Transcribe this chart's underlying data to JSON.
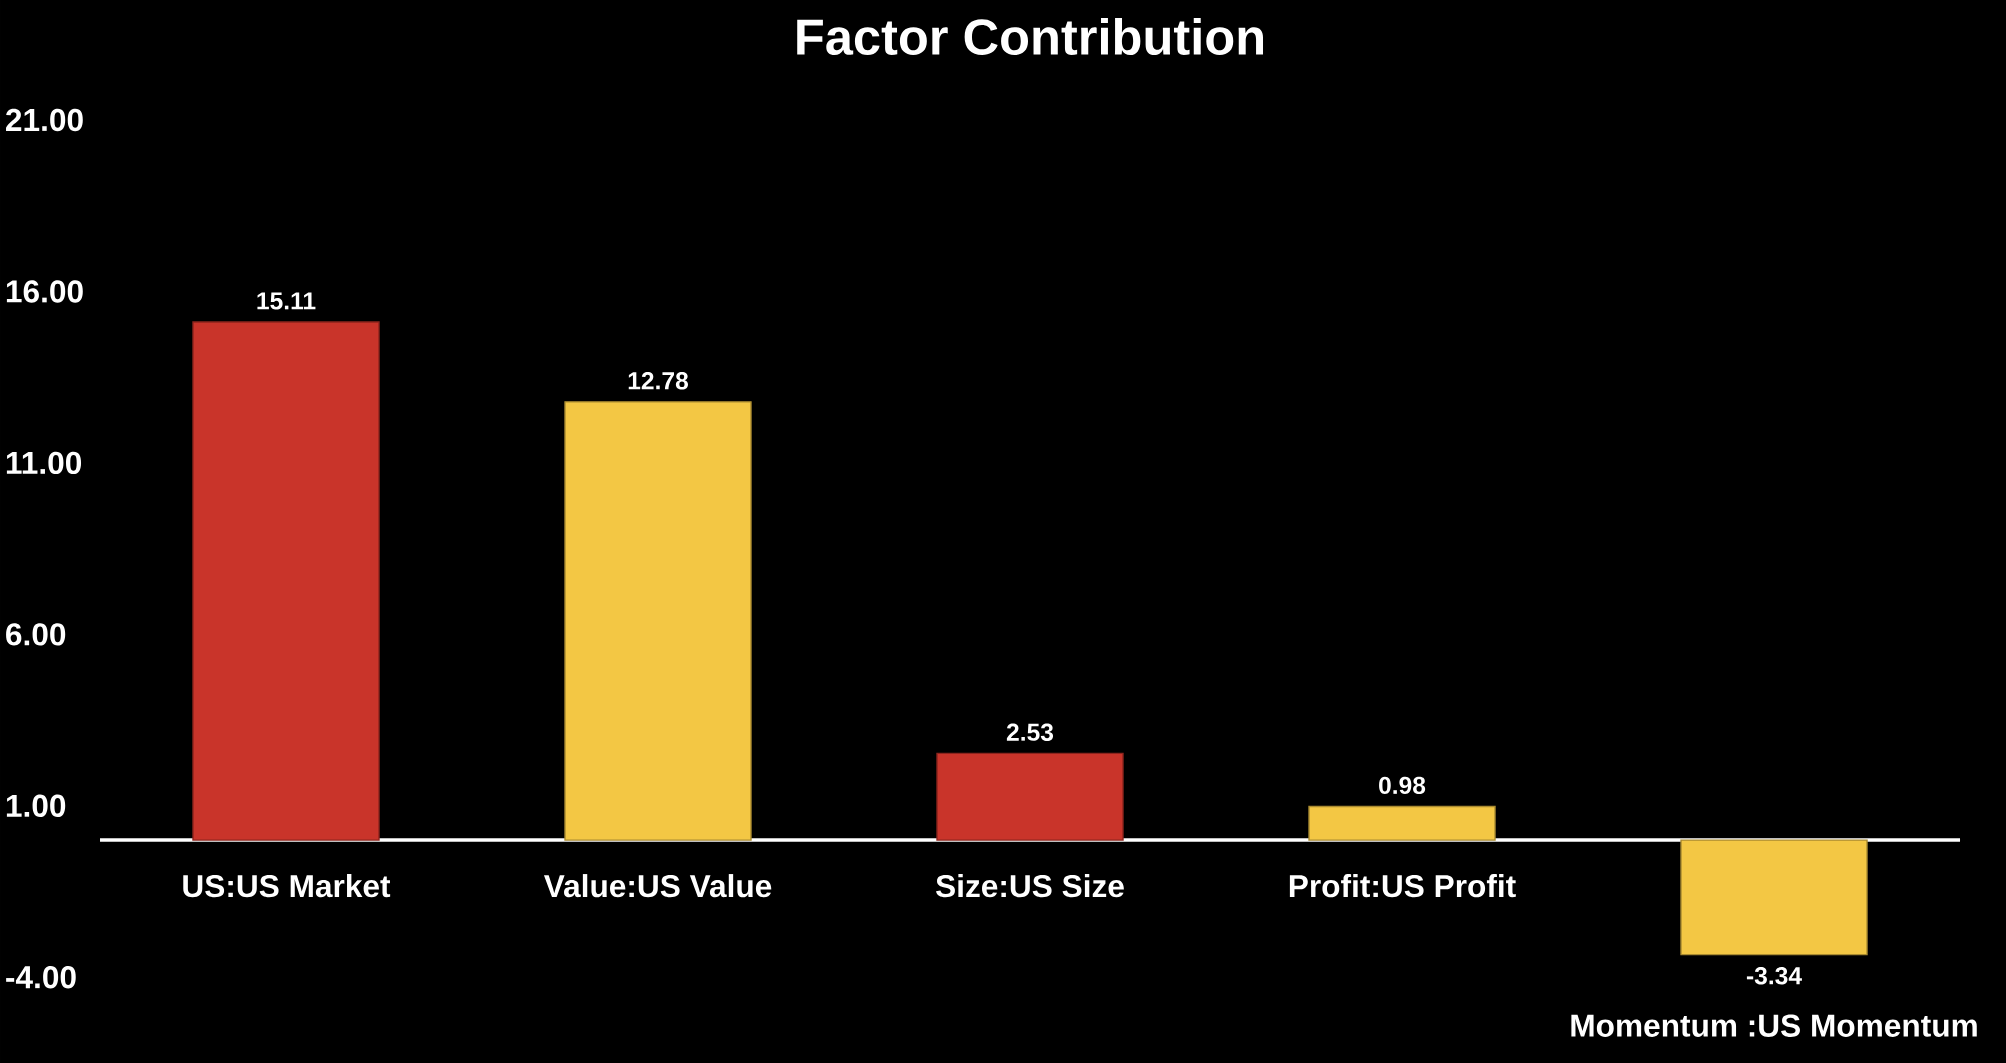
{
  "chart_data": {
    "type": "bar",
    "title": "Factor Contribution",
    "categories": [
      "US:US Market",
      "Value:US Value",
      "Size:US Size",
      "Profit:US Profit",
      "Momentum :US Momentum"
    ],
    "values": [
      15.11,
      12.78,
      2.53,
      0.98,
      -3.34
    ],
    "colors": [
      "#c9342a",
      "#f3c744",
      "#c9342a",
      "#f3c744",
      "#f3c744"
    ],
    "value_labels": [
      "15.11",
      "12.78",
      "2.53",
      "0.98",
      "-3.34"
    ],
    "ylim": [
      -6.5,
      24.5
    ],
    "yticks": [
      {
        "value": -4,
        "label": "-4.00"
      },
      {
        "value": 1,
        "label": "1.00"
      },
      {
        "value": 6,
        "label": "6.00"
      },
      {
        "value": 11,
        "label": "11.00"
      },
      {
        "value": 16,
        "label": "16.00"
      },
      {
        "value": 21,
        "label": "21.00"
      }
    ],
    "grid": false
  }
}
